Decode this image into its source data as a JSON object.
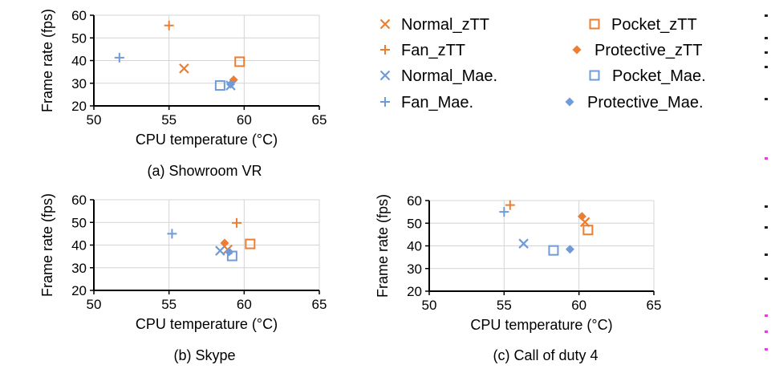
{
  "colors": {
    "zTT": "#ED7D31",
    "Mae": "#6F9BD8",
    "edge_dark": "#222222",
    "edge_magenta": "#E040E0"
  },
  "legend": {
    "items": [
      {
        "label": "Normal_zTT",
        "marker": "x",
        "color": "#ED7D31"
      },
      {
        "label": "Pocket_zTT",
        "marker": "square",
        "color": "#ED7D31"
      },
      {
        "label": "Fan_zTT",
        "marker": "plus",
        "color": "#ED7D31"
      },
      {
        "label": "Protective_zTT",
        "marker": "diamond",
        "color": "#ED7D31"
      },
      {
        "label": "Normal_Mae.",
        "marker": "x",
        "color": "#6F9BD8"
      },
      {
        "label": "Pocket_Mae.",
        "marker": "square",
        "color": "#6F9BD8"
      },
      {
        "label": "Fan_Mae.",
        "marker": "plus",
        "color": "#6F9BD8"
      },
      {
        "label": "Protective_Mae.",
        "marker": "diamond",
        "color": "#6F9BD8"
      }
    ]
  },
  "chart_data": [
    {
      "type": "scatter",
      "caption": "(a) Showroom VR",
      "xlabel": "CPU temperature (°C)",
      "ylabel": "Frame rate (fps)",
      "xlim": [
        50,
        65
      ],
      "ylim": [
        20,
        60
      ],
      "xticks": [
        "50",
        "55",
        "60",
        "65"
      ],
      "yticks": [
        "20",
        "30",
        "40",
        "50",
        "60"
      ],
      "grid": true,
      "series": [
        {
          "name": "Normal_zTT",
          "x": 56.0,
          "y": 36.5
        },
        {
          "name": "Pocket_zTT",
          "x": 59.7,
          "y": 39.5
        },
        {
          "name": "Fan_zTT",
          "x": 55.0,
          "y": 55.5
        },
        {
          "name": "Protective_zTT",
          "x": 59.3,
          "y": 31.5
        },
        {
          "name": "Normal_Mae.",
          "x": 59.1,
          "y": 29.0
        },
        {
          "name": "Pocket_Mae.",
          "x": 58.4,
          "y": 29.0
        },
        {
          "name": "Fan_Mae.",
          "x": 51.7,
          "y": 41.3
        },
        {
          "name": "Protective_Mae.",
          "x": 59.1,
          "y": 29.5
        }
      ]
    },
    {
      "type": "scatter",
      "caption": "(b) Skype",
      "xlabel": "CPU temperature (°C)",
      "ylabel": "Frame rate (fps)",
      "xlim": [
        50,
        65
      ],
      "ylim": [
        20,
        60
      ],
      "xticks": [
        "50",
        "55",
        "60",
        "65"
      ],
      "yticks": [
        "20",
        "30",
        "40",
        "50",
        "60"
      ],
      "grid": true,
      "series": [
        {
          "name": "Normal_zTT",
          "x": 58.9,
          "y": 38.0
        },
        {
          "name": "Pocket_zTT",
          "x": 60.4,
          "y": 40.5
        },
        {
          "name": "Fan_zTT",
          "x": 59.5,
          "y": 49.8
        },
        {
          "name": "Protective_zTT",
          "x": 58.7,
          "y": 40.9
        },
        {
          "name": "Normal_Mae.",
          "x": 58.4,
          "y": 37.5
        },
        {
          "name": "Pocket_Mae.",
          "x": 59.2,
          "y": 35.2
        },
        {
          "name": "Fan_Mae.",
          "x": 55.2,
          "y": 45.0
        },
        {
          "name": "Protective_Mae.",
          "x": 59.0,
          "y": 37.0
        }
      ]
    },
    {
      "type": "scatter",
      "caption": "(c) Call of duty 4",
      "xlabel": "CPU temperature (°C)",
      "ylabel": "Frame rate (fps)",
      "xlim": [
        50,
        65
      ],
      "ylim": [
        20,
        60
      ],
      "xticks": [
        "50",
        "55",
        "60",
        "65"
      ],
      "yticks": [
        "20",
        "30",
        "40",
        "50",
        "60"
      ],
      "grid": true,
      "series": [
        {
          "name": "Normal_zTT",
          "x": 60.4,
          "y": 50.5
        },
        {
          "name": "Pocket_zTT",
          "x": 60.6,
          "y": 47.0
        },
        {
          "name": "Fan_zTT",
          "x": 55.4,
          "y": 58.0
        },
        {
          "name": "Protective_zTT",
          "x": 60.2,
          "y": 53.0
        },
        {
          "name": "Normal_Mae.",
          "x": 56.3,
          "y": 41.0
        },
        {
          "name": "Pocket_Mae.",
          "x": 58.3,
          "y": 38.0
        },
        {
          "name": "Fan_Mae.",
          "x": 55.0,
          "y": 55.0
        },
        {
          "name": "Protective_Mae.",
          "x": 59.4,
          "y": 38.5
        }
      ]
    }
  ]
}
